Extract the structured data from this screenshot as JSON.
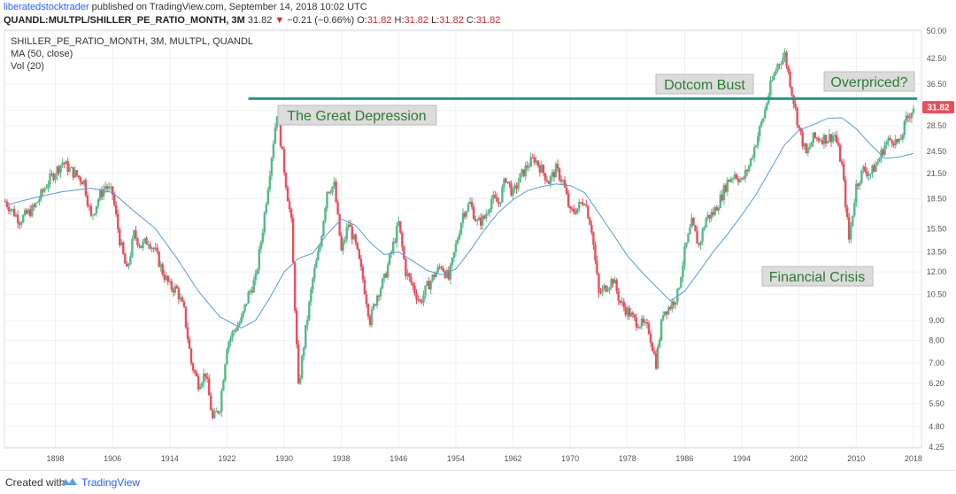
{
  "header": {
    "author": "liberatedstocktrader",
    "published": " published on TradingView.com, September 14, 2018 10:02 UTC",
    "symbol": "QUANDL:MULTPL/SHILLER_PE_RATIO_MONTH, 3M",
    "last": "31.82",
    "change": "−0.21 (−0.66%)",
    "open_label": "O:",
    "open": "31.82",
    "high_label": "H:",
    "high": "31.82",
    "low_label": "L:",
    "low": "31.82",
    "close_label": "C:",
    "close": "31.82"
  },
  "legend": {
    "series": "SHILLER_PE_RATIO_MONTH, 3M, MULTPL, QUANDL",
    "ma": "MA (50, close)",
    "vol": "Vol (20)"
  },
  "annotations": {
    "depression": "The Great Depression",
    "dotcom": "Dotcom Bust",
    "overpriced": "Overpriced?",
    "crisis": "Financial Crisis"
  },
  "footer": {
    "created": "Created with",
    "brand": "TradingView"
  },
  "colors": {
    "up": "#53b987",
    "down": "#eb4d5c",
    "ma": "#5b9bd5",
    "hline": "#22998b",
    "annotation_bg": "#dcdcdc",
    "annotation_text": "#2e7d32",
    "price_tag": "#eb4d5c"
  },
  "chart_data": {
    "type": "candlestick",
    "scale": "log",
    "ylim": [
      4.25,
      50
    ],
    "xlim": [
      1891,
      2019
    ],
    "y_ticks": [
      "50.00",
      "42.50",
      "36.50",
      "31.25",
      "28.50",
      "24.50",
      "21.50",
      "18.50",
      "15.50",
      "13.50",
      "12.00",
      "10.50",
      "9.00",
      "8.00",
      "7.00",
      "6.20",
      "5.50",
      "4.80",
      "4.25"
    ],
    "x_ticks": [
      "1898",
      "1906",
      "1914",
      "1922",
      "1930",
      "1938",
      "1946",
      "1954",
      "1962",
      "1970",
      "1978",
      "1986",
      "1994",
      "2002",
      "2010",
      "2018"
    ],
    "last_price": "31.82",
    "hline_value": 33.5,
    "price_path": [
      [
        1891,
        18.2
      ],
      [
        1893,
        16.3
      ],
      [
        1895,
        17.5
      ],
      [
        1897,
        20.5
      ],
      [
        1899,
        23.0
      ],
      [
        1900,
        22.0
      ],
      [
        1902,
        20.5
      ],
      [
        1903,
        16.5
      ],
      [
        1904,
        18.5
      ],
      [
        1905,
        20.0
      ],
      [
        1906,
        19.0
      ],
      [
        1907,
        14.5
      ],
      [
        1908,
        12.0
      ],
      [
        1909,
        15.0
      ],
      [
        1910,
        14.0
      ],
      [
        1911,
        14.5
      ],
      [
        1912,
        13.5
      ],
      [
        1913,
        12.0
      ],
      [
        1914,
        11.0
      ],
      [
        1915,
        10.8
      ],
      [
        1916,
        9.5
      ],
      [
        1917,
        7.0
      ],
      [
        1918,
        6.2
      ],
      [
        1919,
        6.6
      ],
      [
        1920,
        5.0
      ],
      [
        1921,
        5.4
      ],
      [
        1922,
        7.8
      ],
      [
        1923,
        8.5
      ],
      [
        1924,
        9.0
      ],
      [
        1925,
        10.5
      ],
      [
        1926,
        11.5
      ],
      [
        1927,
        15.5
      ],
      [
        1928,
        22.0
      ],
      [
        1929,
        31.0
      ],
      [
        1930,
        22.0
      ],
      [
        1931,
        16.0
      ],
      [
        1932,
        6.0
      ],
      [
        1933,
        8.5
      ],
      [
        1934,
        11.5
      ],
      [
        1935,
        14.0
      ],
      [
        1936,
        19.5
      ],
      [
        1937,
        20.0
      ],
      [
        1938,
        13.5
      ],
      [
        1939,
        16.0
      ],
      [
        1940,
        14.0
      ],
      [
        1941,
        11.5
      ],
      [
        1942,
        9.0
      ],
      [
        1943,
        10.5
      ],
      [
        1944,
        11.5
      ],
      [
        1945,
        13.5
      ],
      [
        1946,
        16.0
      ],
      [
        1947,
        12.0
      ],
      [
        1948,
        11.0
      ],
      [
        1949,
        10.0
      ],
      [
        1950,
        11.0
      ],
      [
        1951,
        11.8
      ],
      [
        1952,
        12.5
      ],
      [
        1953,
        11.5
      ],
      [
        1954,
        14.0
      ],
      [
        1955,
        17.0
      ],
      [
        1956,
        18.0
      ],
      [
        1957,
        16.0
      ],
      [
        1958,
        16.5
      ],
      [
        1959,
        18.5
      ],
      [
        1960,
        18.0
      ],
      [
        1961,
        21.0
      ],
      [
        1962,
        19.0
      ],
      [
        1963,
        21.0
      ],
      [
        1964,
        22.5
      ],
      [
        1965,
        23.5
      ],
      [
        1966,
        22.0
      ],
      [
        1967,
        20.5
      ],
      [
        1968,
        22.0
      ],
      [
        1969,
        20.5
      ],
      [
        1970,
        17.0
      ],
      [
        1971,
        17.5
      ],
      [
        1972,
        18.5
      ],
      [
        1973,
        15.5
      ],
      [
        1974,
        10.5
      ],
      [
        1975,
        11.0
      ],
      [
        1976,
        11.5
      ],
      [
        1977,
        10.0
      ],
      [
        1978,
        9.5
      ],
      [
        1979,
        9.0
      ],
      [
        1980,
        8.8
      ],
      [
        1981,
        8.5
      ],
      [
        1982,
        7.0
      ],
      [
        1983,
        9.5
      ],
      [
        1984,
        9.8
      ],
      [
        1985,
        10.5
      ],
      [
        1986,
        13.5
      ],
      [
        1987,
        16.0
      ],
      [
        1988,
        14.0
      ],
      [
        1989,
        16.5
      ],
      [
        1990,
        17.0
      ],
      [
        1991,
        18.5
      ],
      [
        1992,
        20.5
      ],
      [
        1993,
        21.5
      ],
      [
        1994,
        20.5
      ],
      [
        1995,
        22.5
      ],
      [
        1996,
        26.0
      ],
      [
        1997,
        30.0
      ],
      [
        1998,
        36.0
      ],
      [
        1999,
        41.0
      ],
      [
        2000,
        43.5
      ],
      [
        2001,
        35.0
      ],
      [
        2002,
        28.0
      ],
      [
        2003,
        24.0
      ],
      [
        2004,
        26.5
      ],
      [
        2005,
        26.5
      ],
      [
        2006,
        26.5
      ],
      [
        2007,
        27.0
      ],
      [
        2008,
        22.5
      ],
      [
        2009,
        14.5
      ],
      [
        2010,
        20.0
      ],
      [
        2011,
        22.0
      ],
      [
        2012,
        21.5
      ],
      [
        2013,
        23.0
      ],
      [
        2014,
        25.5
      ],
      [
        2015,
        26.5
      ],
      [
        2016,
        25.5
      ],
      [
        2017,
        29.5
      ],
      [
        2018,
        31.82
      ]
    ],
    "ma_path": [
      [
        1891,
        17.8
      ],
      [
        1895,
        18.6
      ],
      [
        1899,
        19.3
      ],
      [
        1903,
        19.7
      ],
      [
        1906,
        19.2
      ],
      [
        1909,
        17.2
      ],
      [
        1912,
        15.5
      ],
      [
        1915,
        13.0
      ],
      [
        1918,
        10.7
      ],
      [
        1921,
        9.2
      ],
      [
        1924,
        8.6
      ],
      [
        1926,
        9.0
      ],
      [
        1928,
        10.3
      ],
      [
        1930,
        12.0
      ],
      [
        1932,
        13.0
      ],
      [
        1934,
        13.4
      ],
      [
        1936,
        15.0
      ],
      [
        1938,
        16.4
      ],
      [
        1940,
        15.8
      ],
      [
        1942,
        14.3
      ],
      [
        1944,
        13.3
      ],
      [
        1946,
        13.5
      ],
      [
        1948,
        12.8
      ],
      [
        1950,
        12.1
      ],
      [
        1952,
        11.8
      ],
      [
        1954,
        12.2
      ],
      [
        1956,
        13.6
      ],
      [
        1958,
        15.4
      ],
      [
        1960,
        17.1
      ],
      [
        1962,
        18.4
      ],
      [
        1964,
        19.4
      ],
      [
        1966,
        19.9
      ],
      [
        1968,
        20.2
      ],
      [
        1970,
        20.0
      ],
      [
        1972,
        19.2
      ],
      [
        1974,
        17.0
      ],
      [
        1976,
        15.0
      ],
      [
        1978,
        13.2
      ],
      [
        1980,
        12.0
      ],
      [
        1982,
        11.0
      ],
      [
        1984,
        10.1
      ],
      [
        1986,
        10.7
      ],
      [
        1988,
        12.0
      ],
      [
        1990,
        13.5
      ],
      [
        1992,
        15.0
      ],
      [
        1994,
        16.8
      ],
      [
        1996,
        19.0
      ],
      [
        1998,
        22.0
      ],
      [
        2000,
        25.5
      ],
      [
        2002,
        27.8
      ],
      [
        2004,
        28.7
      ],
      [
        2006,
        29.8
      ],
      [
        2008,
        29.9
      ],
      [
        2010,
        28.0
      ],
      [
        2012,
        25.5
      ],
      [
        2014,
        23.5
      ],
      [
        2016,
        23.7
      ],
      [
        2018,
        24.2
      ]
    ]
  }
}
